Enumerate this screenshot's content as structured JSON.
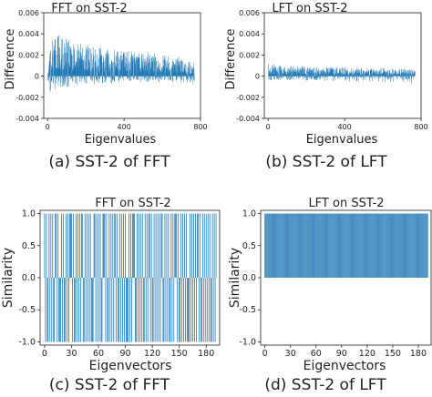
{
  "accent_color": "#1f77b4",
  "chart_data": [
    {
      "id": "a",
      "type": "bar",
      "title": "FFT on SST-2",
      "caption": "(a)  SST-2 of FFT",
      "xlabel": "Eigenvalues",
      "ylabel": "Difference",
      "xlim": [
        -20,
        800
      ],
      "ylim": [
        -0.004,
        0.006
      ],
      "xticks": [
        0,
        400,
        800
      ],
      "yticks": [
        -0.004,
        -0.002,
        0,
        0.002,
        0.004,
        0.006
      ],
      "ytick_labels": [
        "-0.004",
        "-0.002",
        "0",
        "0.002",
        "0.004",
        "0.006"
      ],
      "x_count": 768,
      "envelope_pos": [
        [
          0,
          0.0005
        ],
        [
          10,
          0.0035
        ],
        [
          25,
          0.0047
        ],
        [
          60,
          0.004
        ],
        [
          150,
          0.0032
        ],
        [
          250,
          0.0028
        ],
        [
          400,
          0.0025
        ],
        [
          550,
          0.0022
        ],
        [
          700,
          0.0018
        ],
        [
          768,
          0.0012
        ]
      ],
      "envelope_neg": [
        [
          0,
          -0.0005
        ],
        [
          15,
          -0.0025
        ],
        [
          40,
          -0.0012
        ],
        [
          200,
          -0.0008
        ],
        [
          400,
          -0.0006
        ],
        [
          700,
          -0.0006
        ],
        [
          768,
          -0.0008
        ]
      ],
      "grid": false
    },
    {
      "id": "b",
      "type": "bar",
      "title": "LFT on SST-2",
      "caption": "(b)  SST-2 of LFT",
      "xlabel": "Eigenvalues",
      "ylabel": "Difference",
      "xlim": [
        -20,
        800
      ],
      "ylim": [
        -0.004,
        0.006
      ],
      "xticks": [
        0,
        400,
        800
      ],
      "yticks": [
        -0.004,
        -0.002,
        0,
        0.002,
        0.004,
        0.006
      ],
      "ytick_labels": [
        "-0.004",
        "-0.002",
        "0",
        "0.002",
        "0.004",
        "0.006"
      ],
      "x_count": 768,
      "envelope_pos": [
        [
          0,
          0.0012
        ],
        [
          100,
          0.001
        ],
        [
          300,
          0.0009
        ],
        [
          500,
          0.0008
        ],
        [
          700,
          0.0007
        ],
        [
          768,
          0.0006
        ]
      ],
      "envelope_neg": [
        [
          0,
          -0.0004
        ],
        [
          300,
          -0.0005
        ],
        [
          700,
          -0.0006
        ],
        [
          740,
          -0.0006
        ],
        [
          760,
          -0.0018
        ],
        [
          768,
          -0.0008
        ]
      ],
      "grid": false
    },
    {
      "id": "c",
      "type": "bar",
      "title": "FFT on SST-2",
      "caption": "(c)  SST-2 of FFT",
      "xlabel": "Eigenvectors",
      "ylabel": "Similarity",
      "xlim": [
        -5,
        195
      ],
      "ylim": [
        -1.05,
        1.05
      ],
      "xticks": [
        0,
        30,
        60,
        90,
        120,
        150,
        180
      ],
      "yticks": [
        -1.0,
        -0.5,
        0.0,
        0.5,
        1.0
      ],
      "ytick_labels": [
        "-1.0",
        "-0.5",
        "0.0",
        "0.5",
        "1.0"
      ],
      "x_count": 192,
      "sign_pattern": "+-+--+-+-+--++-+---+-+--+-+-+++-+--+-+-+-++--+-+-+-+---++-+-+-+--+++-+--+-+-+-++-+--+-+-+-+---+-+-+++--+-+-+-+--+-+-++-+--+-+-+-+-++--+-+-+--+-+-+++-+--+-+-+-+---+-+-+-+-++-+--+-+-+-+-+--+-+-++",
      "grid": false
    },
    {
      "id": "d",
      "type": "bar",
      "title": "LFT on SST-2",
      "caption": "(d)  SST-2 of LFT",
      "xlabel": "Eigenvectors",
      "ylabel": "Similarity",
      "xlim": [
        -5,
        195
      ],
      "ylim": [
        -1.05,
        1.05
      ],
      "xticks": [
        0,
        30,
        60,
        90,
        120,
        150,
        180
      ],
      "yticks": [
        -1.0,
        -0.5,
        0.0,
        0.5,
        1.0
      ],
      "ytick_labels": [
        "-1.0",
        "-0.5",
        "0.0",
        "0.5",
        "1.0"
      ],
      "x_count": 192,
      "sign_pattern": "++++++++++++++++++++++++++++++++++++++++++++++++++++++++++++++++++++++++++++++++++++++++++++++++++++++++++++++++++++++++++++++++++++++++++++++++++++++++++++++++++++++++++++++++++++++++++++++++",
      "grid": false
    }
  ]
}
